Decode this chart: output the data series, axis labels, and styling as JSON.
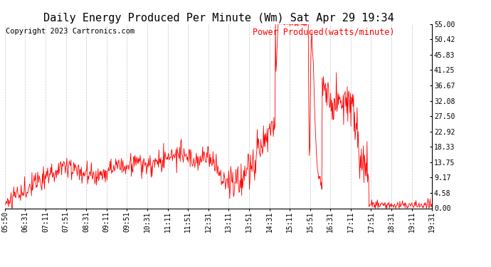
{
  "title": "Daily Energy Produced Per Minute (Wm) Sat Apr 29 19:34",
  "copyright": "Copyright 2023 Cartronics.com",
  "legend_label": "Power Produced(watts/minute)",
  "ylabel_right_ticks": [
    0.0,
    4.58,
    9.17,
    13.75,
    18.33,
    22.92,
    27.5,
    32.08,
    36.67,
    41.25,
    45.83,
    50.42,
    55.0
  ],
  "x_tick_labels": [
    "05:50",
    "06:31",
    "07:11",
    "07:51",
    "08:31",
    "09:11",
    "09:51",
    "10:31",
    "11:11",
    "11:51",
    "12:31",
    "13:11",
    "13:51",
    "14:31",
    "15:11",
    "15:51",
    "16:31",
    "17:11",
    "17:51",
    "18:31",
    "19:11",
    "19:31"
  ],
  "line_color": "#FF0000",
  "background_color": "#FFFFFF",
  "grid_color": "#AAAAAA",
  "title_fontsize": 11,
  "tick_fontsize": 7,
  "legend_fontsize": 8.5,
  "copyright_fontsize": 7.5,
  "ylim": [
    0,
    55
  ],
  "n_points": 822
}
